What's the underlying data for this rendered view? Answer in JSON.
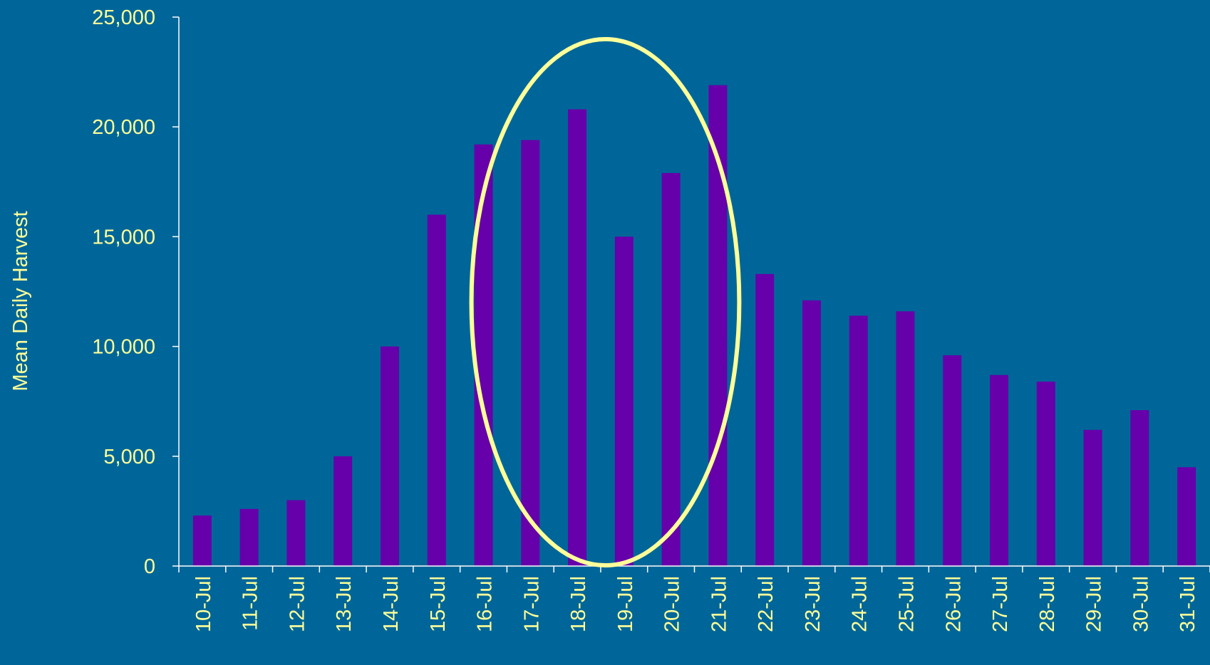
{
  "colors": {
    "background": "#006699",
    "bar": "#6600aa",
    "axis_text": "#ffff99",
    "axis_line": "#ffffff",
    "highlight_ellipse": "#ffff99"
  },
  "chart_data": {
    "type": "bar",
    "title": "",
    "xlabel": "",
    "ylabel": "Mean Daily Harvest",
    "ylim": [
      0,
      25000
    ],
    "y_ticks": [
      "0",
      "5,000",
      "10,000",
      "15,000",
      "20,000",
      "25,000"
    ],
    "y_tick_values": [
      0,
      5000,
      10000,
      15000,
      20000,
      25000
    ],
    "grid": false,
    "legend": "none",
    "categories": [
      "10-Jul",
      "11-Jul",
      "12-Jul",
      "13-Jul",
      "14-Jul",
      "15-Jul",
      "16-Jul",
      "17-Jul",
      "18-Jul",
      "19-Jul",
      "20-Jul",
      "21-Jul",
      "22-Jul",
      "23-Jul",
      "24-Jul",
      "25-Jul",
      "26-Jul",
      "27-Jul",
      "28-Jul",
      "29-Jul",
      "30-Jul",
      "31-Jul"
    ],
    "values": [
      2300,
      2600,
      3000,
      5000,
      10000,
      16000,
      19200,
      19400,
      20800,
      15000,
      17900,
      21900,
      13300,
      12100,
      11400,
      11600,
      9600,
      8700,
      8400,
      6200,
      7100,
      4500
    ],
    "annotation": {
      "type": "ellipse",
      "highlighted_categories": [
        "16-Jul",
        "17-Jul",
        "18-Jul",
        "19-Jul",
        "20-Jul",
        "21-Jul"
      ]
    }
  }
}
